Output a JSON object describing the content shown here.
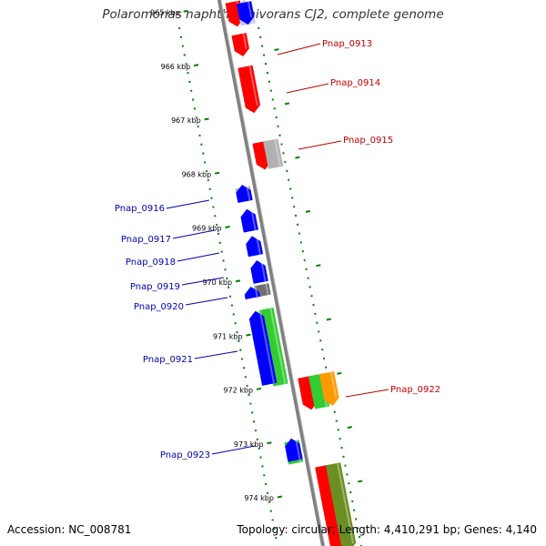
{
  "title": "Polaromonas naphthalenivorans CJ2, complete genome",
  "accession": "Accession: NC_008781",
  "stats": "Topology: circular; Length: 4,410,291 bp; Genes: 4,140",
  "colors": {
    "red": "#ff0000",
    "blue": "#0000ff",
    "green": "#33cc33",
    "gray": "#b0b0b0",
    "darkgray": "#707070",
    "orange": "#ff9900",
    "olive": "#6b8e23",
    "paleblue": "#c8c8ff",
    "dots": "#008000",
    "backbone": "#808080"
  },
  "ticks": [
    {
      "kb": 965,
      "label": "965 kbp"
    },
    {
      "kb": 966,
      "label": "966 kbp"
    },
    {
      "kb": 967,
      "label": "967 kbp"
    },
    {
      "kb": 968,
      "label": "968 kbp"
    },
    {
      "kb": 969,
      "label": "969 kbp"
    },
    {
      "kb": 970,
      "label": "970 kbp"
    },
    {
      "kb": 971,
      "label": "971 kbp"
    },
    {
      "kb": 972,
      "label": "972 kbp"
    },
    {
      "kb": 973,
      "label": "973 kbp"
    },
    {
      "kb": 974,
      "label": "974 kbp"
    }
  ],
  "gene_labels": {
    "top": [
      "Pnap_0913",
      "Pnap_0914",
      "Pnap_0915",
      "Pnap_0922"
    ],
    "bottom": [
      "Pnap_0916",
      "Pnap_0917",
      "Pnap_0918",
      "Pnap_0919",
      "Pnap_0920",
      "Pnap_0921",
      "Pnap_0923"
    ]
  },
  "features": [
    {
      "lane": "top",
      "start": 965.05,
      "end": 965.25,
      "color": "red",
      "strand": "-"
    },
    {
      "lane": "top",
      "start": 965.0,
      "end": 965.45,
      "color": "red",
      "strand": "+"
    },
    {
      "lane": "top",
      "start": 965.0,
      "end": 965.45,
      "color": "paleblue",
      "strand": "-"
    },
    {
      "lane": "top",
      "start": 965.05,
      "end": 965.45,
      "color": "blue",
      "strand": "+"
    },
    {
      "lane": "top",
      "start": 965.6,
      "end": 966.0,
      "color": "red",
      "strand": "+"
    },
    {
      "lane": "top",
      "start": 966.2,
      "end": 967.05,
      "color": "red",
      "strand": "+"
    },
    {
      "lane": "top",
      "start": 967.6,
      "end": 968.1,
      "color": "red",
      "strand": "+"
    },
    {
      "lane": "top",
      "start": 967.6,
      "end": 968.1,
      "color": "gray",
      "strand": "none"
    },
    {
      "lane": "bottom",
      "start": 968.35,
      "end": 968.6,
      "color": "gray",
      "strand": "none"
    },
    {
      "lane": "bottom",
      "start": 968.3,
      "end": 968.6,
      "color": "blue",
      "strand": "-"
    },
    {
      "lane": "bottom",
      "start": 968.75,
      "end": 969.15,
      "color": "blue",
      "strand": "-"
    },
    {
      "lane": "bottom",
      "start": 969.25,
      "end": 969.6,
      "color": "blue",
      "strand": "-"
    },
    {
      "lane": "bottom",
      "start": 969.7,
      "end": 970.1,
      "color": "blue",
      "strand": "-"
    },
    {
      "lane": "bottom",
      "start": 970.15,
      "end": 970.35,
      "color": "darkgray",
      "strand": "none"
    },
    {
      "lane": "bottom",
      "start": 970.15,
      "end": 970.35,
      "color": "blue",
      "strand": "-"
    },
    {
      "lane": "bottom",
      "start": 970.6,
      "end": 972.0,
      "color": "green",
      "strand": "none"
    },
    {
      "lane": "bottom",
      "start": 970.6,
      "end": 971.95,
      "color": "blue",
      "strand": "-"
    },
    {
      "lane": "top",
      "start": 971.95,
      "end": 972.55,
      "color": "red",
      "strand": "+"
    },
    {
      "lane": "top",
      "start": 971.95,
      "end": 972.55,
      "color": "green",
      "strand": "none"
    },
    {
      "lane": "top",
      "start": 971.95,
      "end": 972.55,
      "color": "orange",
      "strand": "+"
    },
    {
      "lane": "bottom",
      "start": 973.05,
      "end": 973.45,
      "color": "green",
      "strand": "none"
    },
    {
      "lane": "bottom",
      "start": 973.0,
      "end": 973.4,
      "color": "blue",
      "strand": "-"
    },
    {
      "lane": "top",
      "start": 973.6,
      "end": 975.2,
      "color": "red",
      "strand": "+"
    },
    {
      "lane": "top",
      "start": 973.6,
      "end": 975.2,
      "color": "olive",
      "strand": "+"
    }
  ]
}
